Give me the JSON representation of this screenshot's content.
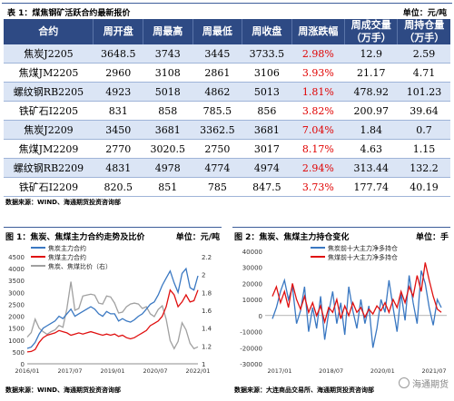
{
  "table": {
    "title": "表 1：煤焦钢矿活跃合约最新报价",
    "unit": "单位：元/吨",
    "columns": [
      "合约",
      "周开盘",
      "周最高",
      "周最低",
      "周收盘",
      "周涨跌幅",
      "周成交量\n（万手）",
      "周持仓量\n（万手）"
    ],
    "rows": [
      {
        "contract": "焦炭J2205",
        "open": "3648.5",
        "high": "3743",
        "low": "3445",
        "close": "3733.5",
        "chg": "2.98%",
        "vol": "12.9",
        "oi": "2.59"
      },
      {
        "contract": "焦煤JM2205",
        "open": "2960",
        "high": "3108",
        "low": "2861",
        "close": "3106",
        "chg": "3.93%",
        "vol": "21.17",
        "oi": "4.71"
      },
      {
        "contract": "螺纹钢RB2205",
        "open": "4923",
        "high": "5018",
        "low": "4862",
        "close": "5013",
        "chg": "1.81%",
        "vol": "478.92",
        "oi": "101.23"
      },
      {
        "contract": "铁矿石I2205",
        "open": "831",
        "high": "858",
        "low": "785.5",
        "close": "856",
        "chg": "3.82%",
        "vol": "200.97",
        "oi": "39.64"
      },
      {
        "contract": "焦炭J2209",
        "open": "3450",
        "high": "3681",
        "low": "3362.5",
        "close": "3681",
        "chg": "7.04%",
        "vol": "1.84",
        "oi": "0.7"
      },
      {
        "contract": "焦煤JM2209",
        "open": "2770",
        "high": "3020.5",
        "low": "2750",
        "close": "3017",
        "chg": "8.17%",
        "vol": "4.63",
        "oi": "1.15"
      },
      {
        "contract": "螺纹钢RB2209",
        "open": "4831",
        "high": "4978",
        "low": "4774",
        "close": "4974",
        "chg": "2.94%",
        "vol": "313.44",
        "oi": "132.2"
      },
      {
        "contract": "铁矿石I2209",
        "open": "820.5",
        "high": "851",
        "low": "785",
        "close": "847.5",
        "chg": "3.73%",
        "vol": "177.74",
        "oi": "40.19"
      }
    ],
    "source": "数据来源：WIND、海通期货投资咨询部"
  },
  "chart_data": [
    {
      "type": "line",
      "title": "图 1：焦炭、焦煤主力合约走势及比价",
      "unit": "单位：元/吨",
      "x_ticks": [
        "2016/01",
        "2017/07",
        "2019/01",
        "2020/07",
        "2022/01"
      ],
      "y_left_ticks": [
        0,
        500,
        1000,
        1500,
        2000,
        2500,
        3000,
        3500,
        4000,
        4500
      ],
      "y_right_ticks": [
        1,
        1.2,
        1.4,
        1.6,
        1.8,
        2,
        2.2
      ],
      "ylim_left": [
        0,
        4500
      ],
      "ylim_right": [
        1,
        2.2
      ],
      "series": [
        {
          "name": "焦炭主力合约",
          "color": "#3a78c2",
          "axis": "left",
          "values": [
            650,
            700,
            900,
            1250,
            1500,
            1600,
            1700,
            1800,
            2000,
            1900,
            2100,
            2300,
            2000,
            2100,
            2200,
            2300,
            2400,
            2300,
            2100,
            2000,
            2200,
            2100,
            2100,
            1800,
            1900,
            1800,
            1750,
            1850,
            2000,
            2100,
            2300,
            2500,
            2600,
            2900,
            3300,
            3600,
            3900,
            3400,
            3000,
            3800,
            4000,
            3200,
            3100,
            3700
          ]
        },
        {
          "name": "焦煤主力合约",
          "color": "#e01010",
          "axis": "left",
          "values": [
            500,
            520,
            600,
            900,
            1100,
            1200,
            1250,
            1300,
            1400,
            1350,
            1300,
            1200,
            1250,
            1300,
            1250,
            1300,
            1350,
            1300,
            1250,
            1200,
            1250,
            1200,
            1250,
            1150,
            1200,
            1100,
            1050,
            1100,
            1200,
            1300,
            1400,
            1600,
            1700,
            1800,
            2000,
            2400,
            3100,
            2900,
            2400,
            2600,
            2900,
            2600,
            2650,
            3100
          ]
        },
        {
          "name": "焦炭、焦煤比价（右）",
          "color": "#a0a0a0",
          "axis": "right",
          "values": [
            1.3,
            1.35,
            1.5,
            1.4,
            1.36,
            1.33,
            1.36,
            1.38,
            1.43,
            1.41,
            1.62,
            1.92,
            1.6,
            1.62,
            1.76,
            1.77,
            1.78,
            1.77,
            1.68,
            1.67,
            1.76,
            1.75,
            1.68,
            1.57,
            1.58,
            1.64,
            1.67,
            1.68,
            1.67,
            1.62,
            1.64,
            1.56,
            1.53,
            1.61,
            1.65,
            1.5,
            1.26,
            1.17,
            1.25,
            1.46,
            1.38,
            1.23,
            1.17,
            1.19
          ]
        }
      ],
      "source": "数据来源：WIND、海通期货投资咨询部"
    },
    {
      "type": "line",
      "title": "图 2：焦炭、焦煤主力持仓变化",
      "unit": "单位：手",
      "x_ticks": [
        "2017/01",
        "2018/07",
        "2020/01",
        "2021/07"
      ],
      "y_ticks": [
        -30000,
        -20000,
        -10000,
        0,
        10000,
        20000,
        30000,
        40000
      ],
      "ylim": [
        -30000,
        40000
      ],
      "series": [
        {
          "name": "焦炭前十大主力净多持仓",
          "color": "#3a78c2",
          "values": [
            -2000,
            5000,
            15000,
            22000,
            10000,
            18000,
            -5000,
            3000,
            18000,
            -10000,
            5000,
            -8000,
            12000,
            -15000,
            2000,
            15000,
            -5000,
            8000,
            -12000,
            18000,
            3000,
            -8000,
            10000,
            -5000,
            6000,
            -20000,
            -8000,
            10000,
            2000,
            22000,
            5000,
            -10000,
            14000,
            -3000,
            25000,
            8000,
            -5000,
            28000,
            20000,
            5000,
            -6000,
            10000,
            5000
          ]
        },
        {
          "name": "焦煤前十大主力净多持仓",
          "color": "#e01010",
          "values": [
            12000,
            18000,
            8000,
            15000,
            5000,
            20000,
            10000,
            4000,
            12000,
            2000,
            8000,
            0,
            6000,
            -4000,
            5000,
            2000,
            10000,
            -2000,
            6000,
            0,
            8000,
            2000,
            5000,
            -1000,
            4000,
            1000,
            6000,
            3000,
            8000,
            2000,
            10000,
            5000,
            15000,
            8000,
            18000,
            12000,
            25000,
            15000,
            33000,
            22000,
            12000,
            4000,
            2000
          ]
        }
      ],
      "source": "数据来源：大连商品交易所、海通期货投资咨询部",
      "watermark": "海通期货"
    }
  ]
}
